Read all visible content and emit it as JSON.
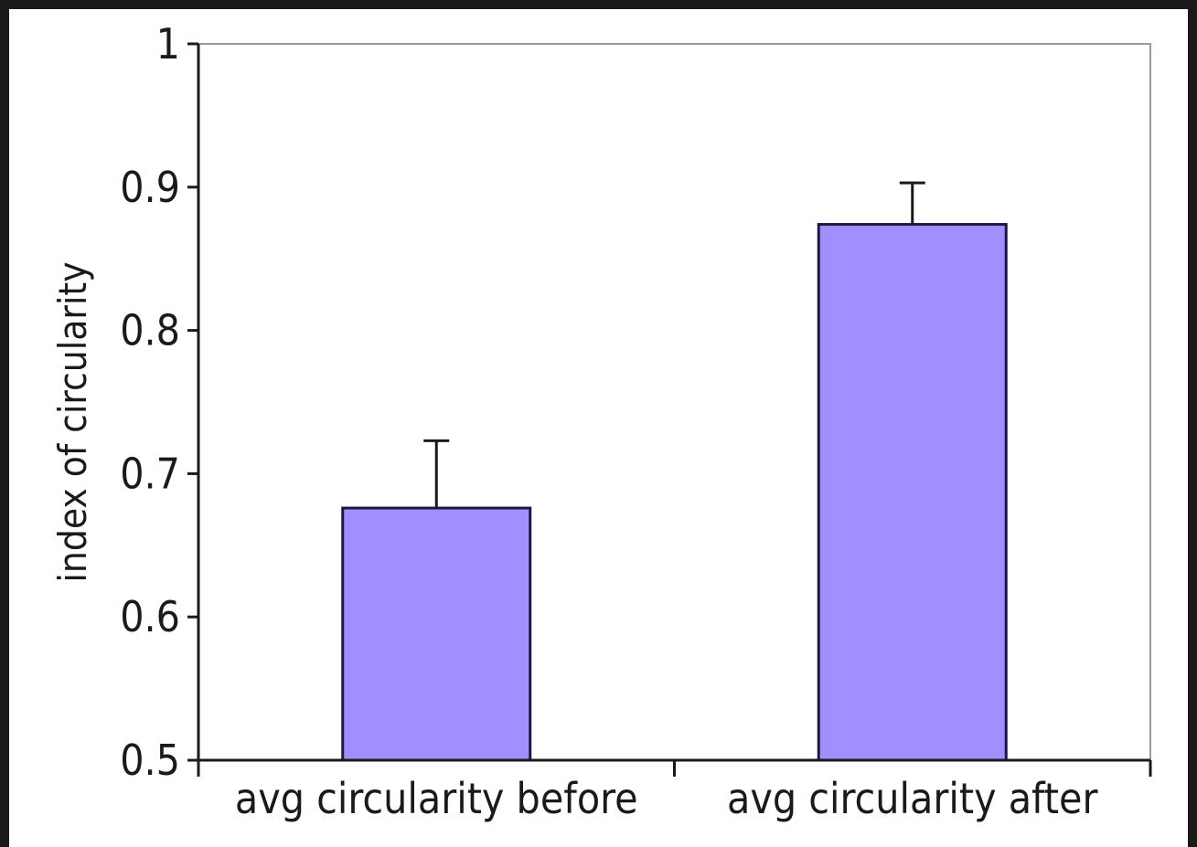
{
  "chart_data": {
    "type": "bar",
    "title": "",
    "xlabel": "",
    "ylabel": "index of circularity",
    "categories": [
      "avg circularity before",
      "avg circularity after"
    ],
    "values": [
      0.676,
      0.874
    ],
    "error_bars": [
      0.047,
      0.029
    ],
    "ylim": [
      0.5,
      1.0
    ],
    "yticks": [
      0.5,
      0.6,
      0.7,
      0.8,
      0.9,
      1.0
    ],
    "ytick_labels": [
      "0.5",
      "0.6",
      "0.7",
      "0.8",
      "0.9",
      "1"
    ],
    "grid": false,
    "legend": "none",
    "bar_color": "#a08ffe",
    "bar_edge_color": "#1a1a40"
  }
}
